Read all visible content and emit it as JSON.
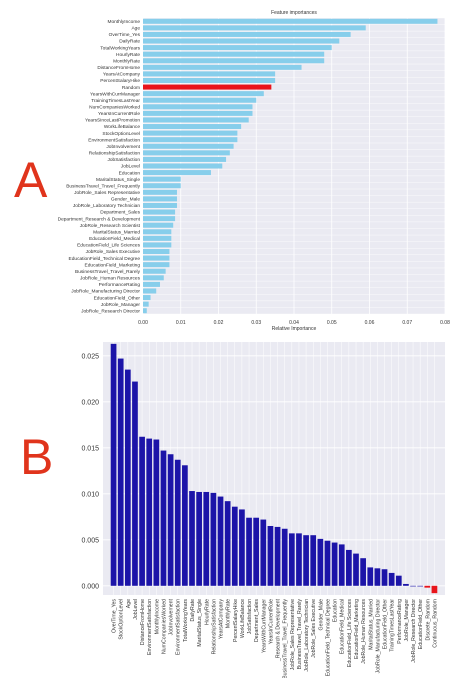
{
  "panel_labels": {
    "a": "A",
    "b": "B"
  },
  "colors": {
    "label_red": "#e0341c",
    "bar_a": "#87ceeb",
    "bar_random": "#e8141b",
    "bar_b": "#1c14a8",
    "bar_b_neg": "#e8141b",
    "plot_bg": "#eaeaf2",
    "grid": "#ffffff"
  },
  "chart_data": [
    {
      "type": "bar",
      "orientation": "horizontal",
      "title": "Feature importances",
      "xlabel": "Relative Importance",
      "xlim": [
        0.0,
        0.08
      ],
      "xticks": [
        "0.00",
        "0.01",
        "0.02",
        "0.03",
        "0.04",
        "0.05",
        "0.06",
        "0.07",
        "0.08"
      ],
      "grid": true,
      "highlight": "Random",
      "categories": [
        "MonthlyIncome",
        "Age",
        "OverTime_Yes",
        "DailyRate",
        "TotalWorkingYears",
        "HourlyRate",
        "MonthlyRate",
        "DistanceFromHome",
        "YearsAtCompany",
        "PercentSalaryHike",
        "Random",
        "YearsWithCurrManager",
        "TrainingTimesLastYear",
        "NumCompaniesWorked",
        "YearsInCurrentRole",
        "YearsSinceLastPromotion",
        "WorkLifeBalance",
        "StockOptionLevel",
        "EnvironmentSatisfaction",
        "JobInvolvement",
        "RelationshipSatisfaction",
        "JobSatisfaction",
        "JobLevel",
        "Education",
        "MaritalStatus_Single",
        "BusinessTravel_Travel_Frequently",
        "JobRole_Sales Representative",
        "Gender_Male",
        "JobRole_Laboratory Technician",
        "Department_Sales",
        "Department_Research & Development",
        "JobRole_Research Scientist",
        "MaritalStatus_Married",
        "EducationField_Medical",
        "EducationField_Life Sciences",
        "JobRole_Sales Executive",
        "EducationField_Technical Degree",
        "EducationField_Marketing",
        "BusinessTravel_Travel_Rarely",
        "JobRole_Human Resources",
        "PerformanceRating",
        "JobRole_Manufacturing Director",
        "EducationField_Other",
        "JobRole_Manager",
        "JobRole_Research Director"
      ],
      "values": [
        0.078,
        0.059,
        0.055,
        0.052,
        0.05,
        0.048,
        0.048,
        0.042,
        0.035,
        0.035,
        0.034,
        0.032,
        0.03,
        0.029,
        0.029,
        0.028,
        0.026,
        0.025,
        0.025,
        0.024,
        0.023,
        0.022,
        0.021,
        0.018,
        0.01,
        0.01,
        0.009,
        0.009,
        0.009,
        0.0085,
        0.0085,
        0.008,
        0.0075,
        0.0075,
        0.0075,
        0.007,
        0.007,
        0.007,
        0.006,
        0.0055,
        0.0045,
        0.0035,
        0.002,
        0.0015,
        0.001
      ]
    },
    {
      "type": "bar",
      "orientation": "vertical",
      "title": "",
      "xlabel": "",
      "ylabel": "",
      "ylim": [
        -0.001,
        0.0265
      ],
      "yticks": [
        "0.000",
        "0.005",
        "0.010",
        "0.015",
        "0.020",
        "0.025"
      ],
      "grid": true,
      "highlight": [
        "Discrete_Random",
        "Continuous_Random"
      ],
      "categories": [
        "OverTime_Yes",
        "StockOptionLevel",
        "Age",
        "JobLevel",
        "DistanceFromHome",
        "EnvironmentSatisfaction",
        "MonthlyIncome",
        "NumCompaniesWorked",
        "JobInvolvement",
        "EnvironmentSatisfaction",
        "TotalWorkingYears",
        "DailyRate",
        "MaritalStatus_Single",
        "HourlyRate",
        "RelationshipSatisfaction",
        "YearsAtCompany",
        "MonthlyRate",
        "PercentSalaryHike",
        "WorkLifeBalance",
        "JobSatisfaction",
        "Department_Sales",
        "YearsWithCurrManager",
        "YearsInCurrentRole",
        "_Research & Development",
        "BusinessTravel_Travel_Frequently",
        "JobRole_Sales Representative",
        "BusinessTravel_Travel_Rarely",
        "JobRole_Laboratory Technician",
        "JobRole_Sales Executive",
        "Gender_Male",
        "EducationField_Technical Degree",
        "Education",
        "EducationField_Medical",
        "EducationField_Life Sciences",
        "EducationField_Marketing",
        "JobRole_Human Resources",
        "MaritalStatus_Married",
        "JobRole_Manufacturing Director",
        "EducationField_Other",
        "TrainingTimesLastYear",
        "PerformanceRating",
        "JobRole_Manager",
        "JobRole_Research Director",
        "EducationField_Other",
        "Discrete_Random",
        "Continuous_Random"
      ],
      "values": [
        0.0263,
        0.0247,
        0.0235,
        0.0222,
        0.0162,
        0.016,
        0.0159,
        0.0147,
        0.0143,
        0.0137,
        0.0131,
        0.0103,
        0.0102,
        0.0102,
        0.0101,
        0.0097,
        0.0092,
        0.0086,
        0.0083,
        0.0074,
        0.0074,
        0.0072,
        0.0065,
        0.0064,
        0.0062,
        0.0057,
        0.0057,
        0.0055,
        0.0055,
        0.0051,
        0.0049,
        0.0047,
        0.0045,
        0.0039,
        0.0035,
        0.003,
        0.002,
        0.0019,
        0.0018,
        0.0014,
        0.0011,
        0.0002,
        0.0,
        0.0,
        -0.0002,
        -0.0008
      ]
    }
  ]
}
